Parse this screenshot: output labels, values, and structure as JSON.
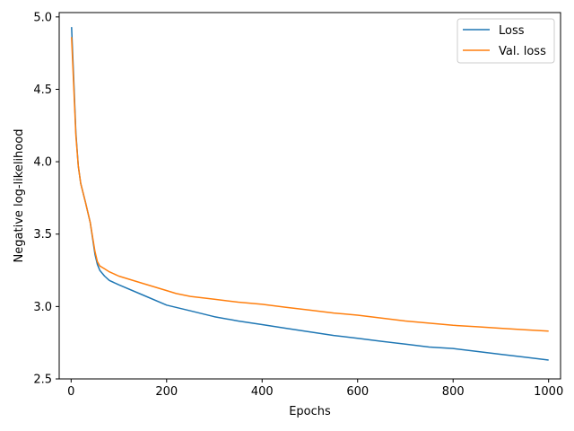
{
  "chart_data": {
    "type": "line",
    "title": "",
    "xlabel": "Epochs",
    "ylabel": "Negative log-likelihood",
    "xlim": [
      -25,
      1025
    ],
    "ylim": [
      2.5,
      5.03
    ],
    "xticks": [
      0,
      200,
      400,
      600,
      800,
      1000
    ],
    "xtick_labels": [
      "0",
      "200",
      "400",
      "600",
      "800",
      "1000"
    ],
    "yticks": [
      2.5,
      3.0,
      3.5,
      4.0,
      4.5,
      5.0
    ],
    "ytick_labels": [
      "2.5",
      "3.0",
      "3.5",
      "4.0",
      "4.5",
      "5.0"
    ],
    "grid": false,
    "legend_position": "top-right",
    "series": [
      {
        "name": "Loss",
        "color": "#1f77b4",
        "x": [
          1,
          5,
          10,
          15,
          20,
          30,
          40,
          50,
          55,
          60,
          70,
          80,
          100,
          150,
          200,
          250,
          300,
          350,
          400,
          450,
          500,
          550,
          600,
          650,
          700,
          750,
          800,
          850,
          900,
          950,
          1000
        ],
        "y": [
          4.93,
          4.6,
          4.2,
          3.97,
          3.85,
          3.72,
          3.58,
          3.36,
          3.29,
          3.25,
          3.21,
          3.18,
          3.15,
          3.08,
          3.01,
          2.97,
          2.93,
          2.9,
          2.875,
          2.85,
          2.825,
          2.8,
          2.78,
          2.76,
          2.74,
          2.72,
          2.71,
          2.69,
          2.67,
          2.65,
          2.63
        ]
      },
      {
        "name": "Val. loss",
        "color": "#ff7f0e",
        "x": [
          1,
          5,
          10,
          15,
          20,
          30,
          40,
          50,
          55,
          60,
          70,
          80,
          100,
          150,
          200,
          220,
          250,
          300,
          350,
          400,
          450,
          500,
          550,
          600,
          650,
          700,
          750,
          800,
          850,
          900,
          950,
          1000
        ],
        "y": [
          4.86,
          4.55,
          4.18,
          3.97,
          3.85,
          3.72,
          3.58,
          3.38,
          3.31,
          3.28,
          3.26,
          3.24,
          3.21,
          3.16,
          3.11,
          3.09,
          3.07,
          3.05,
          3.03,
          3.015,
          2.995,
          2.975,
          2.955,
          2.94,
          2.92,
          2.9,
          2.885,
          2.87,
          2.86,
          2.85,
          2.84,
          2.83
        ]
      }
    ]
  }
}
